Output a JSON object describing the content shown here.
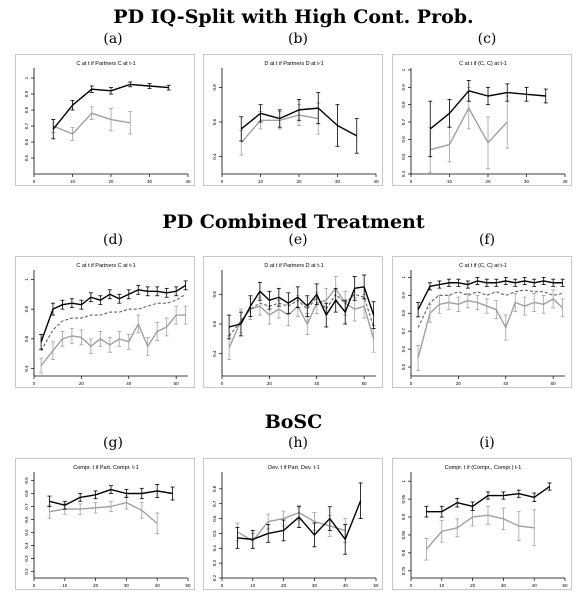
{
  "sections": [
    {
      "title": "PD IQ-Split with High Cont. Prob."
    },
    {
      "title": "PD Combined Treatment"
    },
    {
      "title": "BoSC"
    }
  ],
  "colors": {
    "black_series": "#000000",
    "gray_series": "#a0a0a0",
    "dashed_series": "#606060",
    "frame": "#c8c8c8"
  },
  "chart_data": [
    {
      "label": "(a)",
      "type": "line",
      "title": "C at t if Partners C at t-1",
      "xlim": [
        0,
        40
      ],
      "ylim": [
        0.4,
        1.05
      ],
      "x_ticks": [
        0,
        10,
        20,
        30,
        40
      ],
      "x_tick_labels": [
        "0",
        "10",
        "20",
        "30",
        "40"
      ],
      "y_ticks": [
        0.5,
        0.6,
        0.7,
        0.8,
        0.9,
        1.0
      ],
      "y_tick_labels": [
        "0.5",
        "0.6",
        "0.7",
        "0.8",
        "0.9",
        "1"
      ],
      "series": [
        {
          "style": "black",
          "x": [
            5,
            10,
            15,
            20,
            25,
            30,
            35
          ],
          "y": [
            0.68,
            0.83,
            0.93,
            0.92,
            0.96,
            0.95,
            0.94
          ],
          "err": [
            0.06,
            0.03,
            0.02,
            0.02,
            0.015,
            0.015,
            0.015
          ]
        },
        {
          "style": "gray",
          "x": [
            5,
            10,
            15,
            20,
            25
          ],
          "y": [
            0.7,
            0.65,
            0.78,
            0.74,
            0.72
          ],
          "err": [
            0.04,
            0.04,
            0.04,
            0.07,
            0.07
          ]
        }
      ]
    },
    {
      "label": "(b)",
      "type": "line",
      "title": "D at t if Partners D at t-1",
      "xlim": [
        0,
        40
      ],
      "ylim": [
        0.3,
        0.9
      ],
      "x_ticks": [
        0,
        10,
        20,
        30,
        40
      ],
      "x_tick_labels": [
        "0",
        "10",
        "20",
        "30",
        "40"
      ],
      "y_ticks": [
        0.4,
        0.6,
        0.8
      ],
      "y_tick_labels": [
        "0.4",
        "0.6",
        "0.8"
      ],
      "series": [
        {
          "style": "black",
          "x": [
            5,
            10,
            15,
            20,
            25,
            30,
            35
          ],
          "y": [
            0.56,
            0.65,
            0.62,
            0.67,
            0.68,
            0.58,
            0.52
          ],
          "err": [
            0.07,
            0.05,
            0.05,
            0.06,
            0.09,
            0.12,
            0.1
          ]
        },
        {
          "style": "gray",
          "x": [
            5,
            10,
            15,
            20,
            25
          ],
          "y": [
            0.48,
            0.61,
            0.61,
            0.64,
            0.62
          ],
          "err": [
            0.07,
            0.05,
            0.05,
            0.06,
            0.09
          ]
        }
      ]
    },
    {
      "label": "(c)",
      "type": "line",
      "title": "C at t if (C, C) at t-1",
      "xlim": [
        0,
        40
      ],
      "ylim": [
        0.4,
        1.0
      ],
      "x_ticks": [
        0,
        10,
        20,
        30,
        40
      ],
      "x_tick_labels": [
        "0",
        "10",
        "20",
        "30",
        "40"
      ],
      "y_ticks": [
        0.4,
        0.5,
        0.6,
        0.7,
        0.8,
        0.9,
        1.0
      ],
      "y_tick_labels": [
        "0.4",
        "0.5",
        "0.6",
        "0.7",
        "0.8",
        "0.9",
        "1"
      ],
      "series": [
        {
          "style": "black",
          "x": [
            5,
            10,
            15,
            20,
            25,
            30,
            35
          ],
          "y": [
            0.66,
            0.75,
            0.88,
            0.85,
            0.87,
            0.86,
            0.85
          ],
          "err": [
            0.16,
            0.08,
            0.06,
            0.05,
            0.05,
            0.04,
            0.04
          ]
        },
        {
          "style": "gray",
          "x": [
            5,
            10,
            15,
            20,
            25
          ],
          "y": [
            0.54,
            0.57,
            0.78,
            0.58,
            0.7
          ],
          "err": [
            0.13,
            0.1,
            0.12,
            0.15,
            0.15
          ]
        }
      ]
    },
    {
      "label": "(d)",
      "type": "line",
      "title": "C at t if Partners C at t-1",
      "xlim": [
        0,
        65
      ],
      "ylim": [
        0.35,
        1.05
      ],
      "x_ticks": [
        0,
        20,
        40,
        60
      ],
      "x_tick_labels": [
        "0",
        "20",
        "40",
        "60"
      ],
      "y_ticks": [
        0.4,
        0.6,
        0.8,
        1.0
      ],
      "y_tick_labels": [
        "0.4",
        "0.6",
        "0.8",
        "1"
      ],
      "series": [
        {
          "style": "black",
          "x": [
            3,
            8,
            12,
            16,
            20,
            24,
            28,
            32,
            36,
            40,
            44,
            48,
            52,
            56,
            60,
            64
          ],
          "y": [
            0.58,
            0.8,
            0.83,
            0.84,
            0.83,
            0.88,
            0.86,
            0.9,
            0.87,
            0.9,
            0.93,
            0.92,
            0.92,
            0.91,
            0.92,
            0.96
          ],
          "err": [
            0.05,
            0.04,
            0.03,
            0.03,
            0.03,
            0.03,
            0.03,
            0.03,
            0.03,
            0.03,
            0.03,
            0.03,
            0.03,
            0.03,
            0.03,
            0.03
          ]
        },
        {
          "style": "dashed",
          "x": [
            3,
            8,
            12,
            16,
            20,
            24,
            28,
            32,
            36,
            40,
            44,
            48,
            52,
            56,
            60,
            64
          ],
          "y": [
            0.52,
            0.66,
            0.72,
            0.74,
            0.74,
            0.76,
            0.76,
            0.78,
            0.78,
            0.8,
            0.8,
            0.82,
            0.84,
            0.84,
            0.86,
            0.9
          ]
        },
        {
          "style": "gray",
          "x": [
            3,
            8,
            12,
            16,
            20,
            24,
            28,
            32,
            36,
            40,
            44,
            48,
            52,
            56,
            60,
            64
          ],
          "y": [
            0.42,
            0.52,
            0.6,
            0.62,
            0.61,
            0.55,
            0.6,
            0.56,
            0.6,
            0.58,
            0.7,
            0.55,
            0.65,
            0.68,
            0.76,
            0.76
          ],
          "err": [
            0.05,
            0.06,
            0.05,
            0.05,
            0.05,
            0.05,
            0.05,
            0.05,
            0.05,
            0.05,
            0.06,
            0.06,
            0.06,
            0.06,
            0.06,
            0.06
          ]
        }
      ]
    },
    {
      "label": "(e)",
      "type": "line",
      "title": "D at t if Partners D at t-1",
      "xlim": [
        0,
        65
      ],
      "ylim": [
        0.25,
        0.95
      ],
      "x_ticks": [
        0,
        20,
        40,
        60
      ],
      "x_tick_labels": [
        "0",
        "20",
        "40",
        "60"
      ],
      "y_ticks": [
        0.4,
        0.6,
        0.8
      ],
      "y_tick_labels": [
        "0.4",
        "0.6",
        "0.8"
      ],
      "series": [
        {
          "style": "black",
          "x": [
            3,
            8,
            12,
            16,
            20,
            24,
            28,
            32,
            36,
            40,
            44,
            48,
            52,
            56,
            60,
            64
          ],
          "y": [
            0.58,
            0.6,
            0.72,
            0.82,
            0.76,
            0.78,
            0.74,
            0.78,
            0.72,
            0.8,
            0.66,
            0.76,
            0.68,
            0.84,
            0.85,
            0.66
          ],
          "err": [
            0.08,
            0.08,
            0.07,
            0.06,
            0.06,
            0.06,
            0.07,
            0.07,
            0.07,
            0.07,
            0.08,
            0.08,
            0.08,
            0.08,
            0.08,
            0.09
          ]
        },
        {
          "style": "dashed",
          "x": [
            3,
            8,
            12,
            16,
            20,
            24,
            28,
            32,
            36,
            40,
            44,
            48,
            52,
            56,
            60,
            64
          ],
          "y": [
            0.52,
            0.62,
            0.7,
            0.74,
            0.72,
            0.74,
            0.72,
            0.76,
            0.7,
            0.78,
            0.7,
            0.8,
            0.74,
            0.8,
            0.78,
            0.58
          ]
        },
        {
          "style": "gray",
          "x": [
            3,
            8,
            12,
            16,
            20,
            24,
            28,
            32,
            36,
            40,
            44,
            48,
            52,
            56,
            60,
            64
          ],
          "y": [
            0.44,
            0.62,
            0.7,
            0.72,
            0.66,
            0.7,
            0.66,
            0.72,
            0.6,
            0.74,
            0.76,
            0.84,
            0.74,
            0.7,
            0.72,
            0.5
          ],
          "err": [
            0.08,
            0.08,
            0.07,
            0.06,
            0.06,
            0.06,
            0.07,
            0.07,
            0.07,
            0.07,
            0.08,
            0.08,
            0.08,
            0.08,
            0.08,
            0.09
          ]
        }
      ]
    },
    {
      "label": "(f)",
      "type": "line",
      "title": "C at t if (C, C) at t-1",
      "xlim": [
        0,
        65
      ],
      "ylim": [
        0.45,
        1.03
      ],
      "x_ticks": [
        0,
        20,
        40,
        60
      ],
      "x_tick_labels": [
        "0",
        "20",
        "40",
        "60"
      ],
      "y_ticks": [
        0.5,
        0.6,
        0.7,
        0.8,
        0.9,
        1.0
      ],
      "y_tick_labels": [
        "0.5",
        "0.6",
        "0.7",
        "0.8",
        "0.9",
        "1"
      ],
      "series": [
        {
          "style": "black",
          "x": [
            3,
            8,
            12,
            16,
            20,
            24,
            28,
            32,
            36,
            40,
            44,
            48,
            52,
            56,
            60,
            64
          ],
          "y": [
            0.82,
            0.95,
            0.96,
            0.97,
            0.97,
            0.96,
            0.98,
            0.97,
            0.97,
            0.98,
            0.97,
            0.98,
            0.97,
            0.98,
            0.97,
            0.97
          ],
          "err": [
            0.04,
            0.02,
            0.02,
            0.02,
            0.02,
            0.02,
            0.02,
            0.02,
            0.02,
            0.02,
            0.02,
            0.02,
            0.02,
            0.02,
            0.02,
            0.02
          ]
        },
        {
          "style": "dashed",
          "x": [
            3,
            8,
            12,
            16,
            20,
            24,
            28,
            32,
            36,
            40,
            44,
            48,
            52,
            56,
            60,
            64
          ],
          "y": [
            0.72,
            0.86,
            0.9,
            0.9,
            0.92,
            0.9,
            0.92,
            0.9,
            0.92,
            0.9,
            0.92,
            0.93,
            0.92,
            0.92,
            0.9,
            0.91
          ]
        },
        {
          "style": "gray",
          "x": [
            3,
            8,
            12,
            16,
            20,
            24,
            28,
            32,
            36,
            40,
            44,
            48,
            52,
            56,
            60,
            64
          ],
          "y": [
            0.55,
            0.8,
            0.85,
            0.86,
            0.85,
            0.87,
            0.86,
            0.84,
            0.82,
            0.72,
            0.86,
            0.84,
            0.86,
            0.85,
            0.88,
            0.83
          ],
          "err": [
            0.07,
            0.05,
            0.05,
            0.04,
            0.04,
            0.04,
            0.04,
            0.04,
            0.05,
            0.07,
            0.05,
            0.05,
            0.05,
            0.05,
            0.05,
            0.05
          ]
        }
      ]
    },
    {
      "label": "(g)",
      "type": "line",
      "title": "Compr. t if Part. Compr. t-1",
      "xlim": [
        0,
        50
      ],
      "ylim": [
        0.15,
        0.95
      ],
      "x_ticks": [
        0,
        10,
        20,
        30,
        40,
        50
      ],
      "x_tick_labels": [
        "0",
        "10",
        "20",
        "30",
        "40",
        "50"
      ],
      "y_ticks": [
        0.2,
        0.3,
        0.4,
        0.5,
        0.6,
        0.7,
        0.8,
        0.9
      ],
      "y_tick_labels": [
        "0.2",
        "0.3",
        "0.4",
        "0.5",
        "0.6",
        "0.7",
        "0.8",
        "0.9"
      ],
      "series": [
        {
          "style": "black",
          "x": [
            5,
            10,
            15,
            20,
            25,
            30,
            35,
            40,
            45
          ],
          "y": [
            0.74,
            0.71,
            0.77,
            0.79,
            0.83,
            0.8,
            0.8,
            0.82,
            0.8
          ],
          "err": [
            0.04,
            0.03,
            0.03,
            0.03,
            0.03,
            0.03,
            0.04,
            0.05,
            0.05
          ]
        },
        {
          "style": "gray",
          "x": [
            5,
            10,
            15,
            20,
            25,
            30,
            35,
            40
          ],
          "y": [
            0.66,
            0.68,
            0.68,
            0.69,
            0.7,
            0.73,
            0.67,
            0.57
          ],
          "err": [
            0.05,
            0.04,
            0.04,
            0.04,
            0.04,
            0.05,
            0.06,
            0.08
          ]
        }
      ]
    },
    {
      "label": "(h)",
      "type": "line",
      "title": "Dev. t if Part. Dev. t-1",
      "xlim": [
        0,
        50
      ],
      "ylim": [
        0.2,
        0.9
      ],
      "x_ticks": [
        0,
        10,
        20,
        30,
        40,
        50
      ],
      "x_tick_labels": [
        "0",
        "10",
        "20",
        "30",
        "40",
        "50"
      ],
      "y_ticks": [
        0.2,
        0.3,
        0.4,
        0.5,
        0.6,
        0.7,
        0.8
      ],
      "y_tick_labels": [
        "0.2",
        "0.3",
        "0.4",
        "0.5",
        "0.6",
        "0.7",
        "0.8"
      ],
      "series": [
        {
          "style": "black",
          "x": [
            5,
            10,
            15,
            20,
            25,
            30,
            35,
            40,
            45
          ],
          "y": [
            0.47,
            0.46,
            0.5,
            0.52,
            0.61,
            0.49,
            0.6,
            0.46,
            0.72
          ],
          "err": [
            0.07,
            0.06,
            0.06,
            0.07,
            0.07,
            0.08,
            0.08,
            0.1,
            0.12
          ]
        },
        {
          "style": "gray",
          "x": [
            5,
            10,
            15,
            20,
            25,
            30,
            35,
            40
          ],
          "y": [
            0.51,
            0.45,
            0.58,
            0.6,
            0.64,
            0.58,
            0.55,
            0.52
          ],
          "err": [
            0.06,
            0.05,
            0.05,
            0.05,
            0.05,
            0.06,
            0.07,
            0.08
          ]
        }
      ]
    },
    {
      "label": "(i)",
      "type": "line",
      "title": "Compr. t if (Compr., Compr.) t-1",
      "xlim": [
        0,
        50
      ],
      "ylim": [
        0.73,
        1.02
      ],
      "x_ticks": [
        0,
        10,
        20,
        30,
        40,
        50
      ],
      "x_tick_labels": [
        "0",
        "10",
        "20",
        "30",
        "40",
        "50"
      ],
      "y_ticks": [
        0.75,
        0.8,
        0.85,
        0.9,
        0.95,
        1.0
      ],
      "y_tick_labels": [
        "0.75",
        "0.8",
        "0.85",
        "0.9",
        "0.95",
        "1"
      ],
      "series": [
        {
          "style": "black",
          "x": [
            5,
            10,
            15,
            20,
            25,
            30,
            35,
            40,
            45
          ],
          "y": [
            0.915,
            0.915,
            0.94,
            0.93,
            0.96,
            0.96,
            0.965,
            0.955,
            0.985
          ],
          "err": [
            0.015,
            0.015,
            0.012,
            0.012,
            0.01,
            0.01,
            0.01,
            0.012,
            0.01
          ]
        },
        {
          "style": "gray",
          "x": [
            5,
            10,
            15,
            20,
            25,
            30,
            35,
            40
          ],
          "y": [
            0.81,
            0.86,
            0.87,
            0.9,
            0.905,
            0.895,
            0.875,
            0.87
          ],
          "err": [
            0.03,
            0.03,
            0.025,
            0.025,
            0.025,
            0.03,
            0.04,
            0.05
          ]
        }
      ]
    }
  ]
}
